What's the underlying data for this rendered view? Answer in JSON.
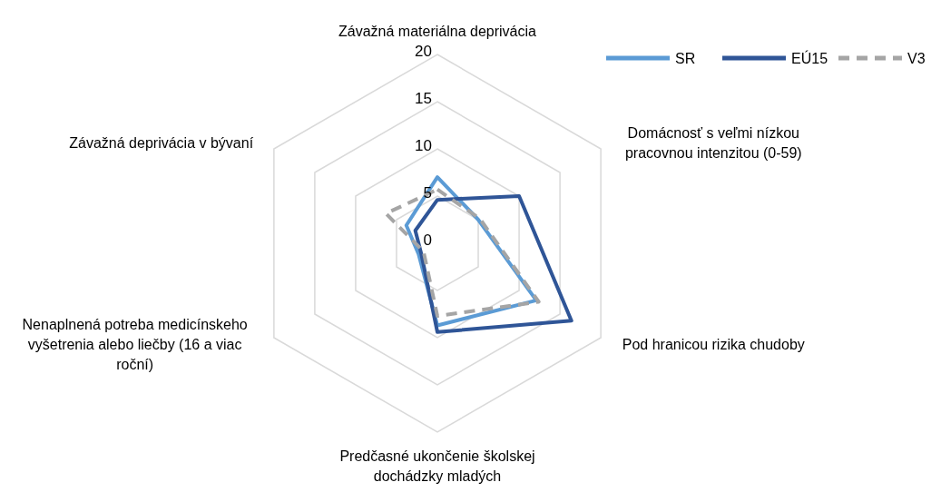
{
  "chart_data": {
    "type": "radar",
    "categories": [
      "Závažná materiálna deprivácia",
      "Domácnosť s veľmi nízkou pracovnou intenzitou (0-59)",
      "Pod hranicou rizika chudoby",
      "Predčasné ukončenie školskej dochádzky mladých",
      "Nenaplnená potreba medicínskeho vyšetrenia alebo liečby (16 a viac roční)",
      "Závažná deprivácia v bývaní"
    ],
    "series": [
      {
        "name": "SR",
        "color": "#5b9bd5",
        "values": [
          7.0,
          5.0,
          12.1,
          8.7,
          2.3,
          3.8
        ]
      },
      {
        "name": "EÚ15",
        "color": "#2f5597",
        "values": [
          4.6,
          10.0,
          16.4,
          9.4,
          2.0,
          2.7
        ]
      },
      {
        "name": "V3",
        "color": "#a5a5a5",
        "values": [
          5.7,
          5.2,
          12.4,
          7.7,
          1.7,
          6.3
        ],
        "line_style": "dashed"
      }
    ],
    "ylim": [
      0,
      20
    ],
    "yticks": [
      0,
      5,
      10,
      15,
      20
    ],
    "grid": true,
    "legend": "top right",
    "marker": "none"
  }
}
